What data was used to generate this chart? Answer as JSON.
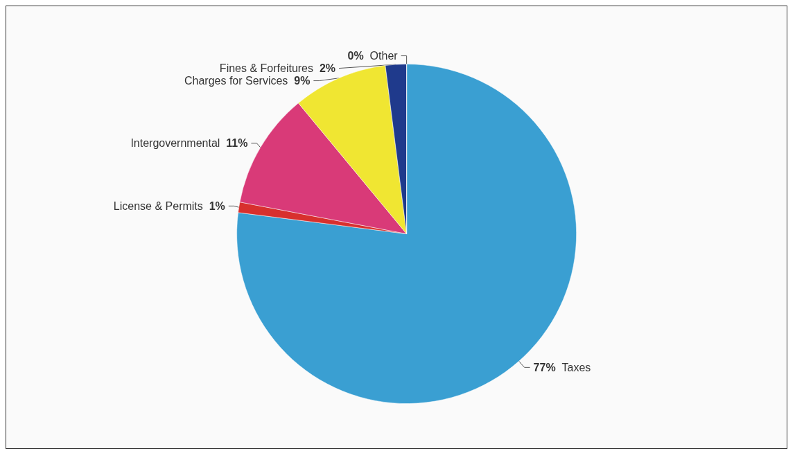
{
  "chart_data": {
    "type": "pie",
    "categories": [
      "Taxes",
      "License & Permits",
      "Intergovernmental",
      "Charges for Services",
      "Fines & Forfeitures",
      "Other"
    ],
    "values": [
      77,
      1,
      11,
      9,
      2,
      0
    ],
    "value_labels": [
      "77%",
      "1%",
      "11%",
      "9%",
      "2%",
      "0%"
    ],
    "colors": [
      "#3a9fd2",
      "#d8302e",
      "#d93a78",
      "#f0e632",
      "#1f3a8c",
      "#b8c4de"
    ]
  }
}
